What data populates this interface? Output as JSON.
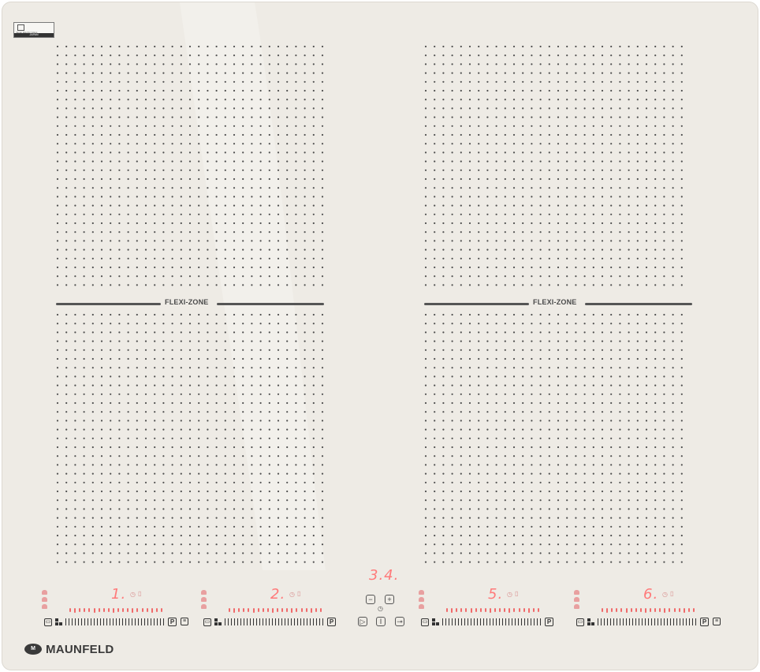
{
  "brand": {
    "logo_mark": "M",
    "name": "MAUNFELD"
  },
  "cert_badge": {
    "text": "Japan Electric Glass",
    "origin": "JAPAN"
  },
  "flexi_zones": [
    {
      "label": "FLEXI-ZONE"
    },
    {
      "label": "FLEXI-ZONE"
    }
  ],
  "center_display": "3.4.",
  "zones": [
    {
      "digit": "1.",
      "timer_icon": "timer-icon",
      "lock_icon": "lock-icon"
    },
    {
      "digit": "2.",
      "timer_icon": "timer-icon",
      "lock_icon": "lock-icon"
    },
    {
      "digit": "5.",
      "timer_icon": "timer-icon",
      "lock_icon": "lock-icon"
    },
    {
      "digit": "6.",
      "timer_icon": "timer-icon",
      "lock_icon": "lock-icon"
    }
  ],
  "controls": {
    "minus": "−",
    "plus": "+",
    "power": "I",
    "pause": "▷",
    "lock": "⊸",
    "boost": "P",
    "timer_glyph": "◷"
  },
  "colors": {
    "glass": "#eeebe5",
    "led_red": "#f16a6a",
    "print_dark": "#333333"
  }
}
